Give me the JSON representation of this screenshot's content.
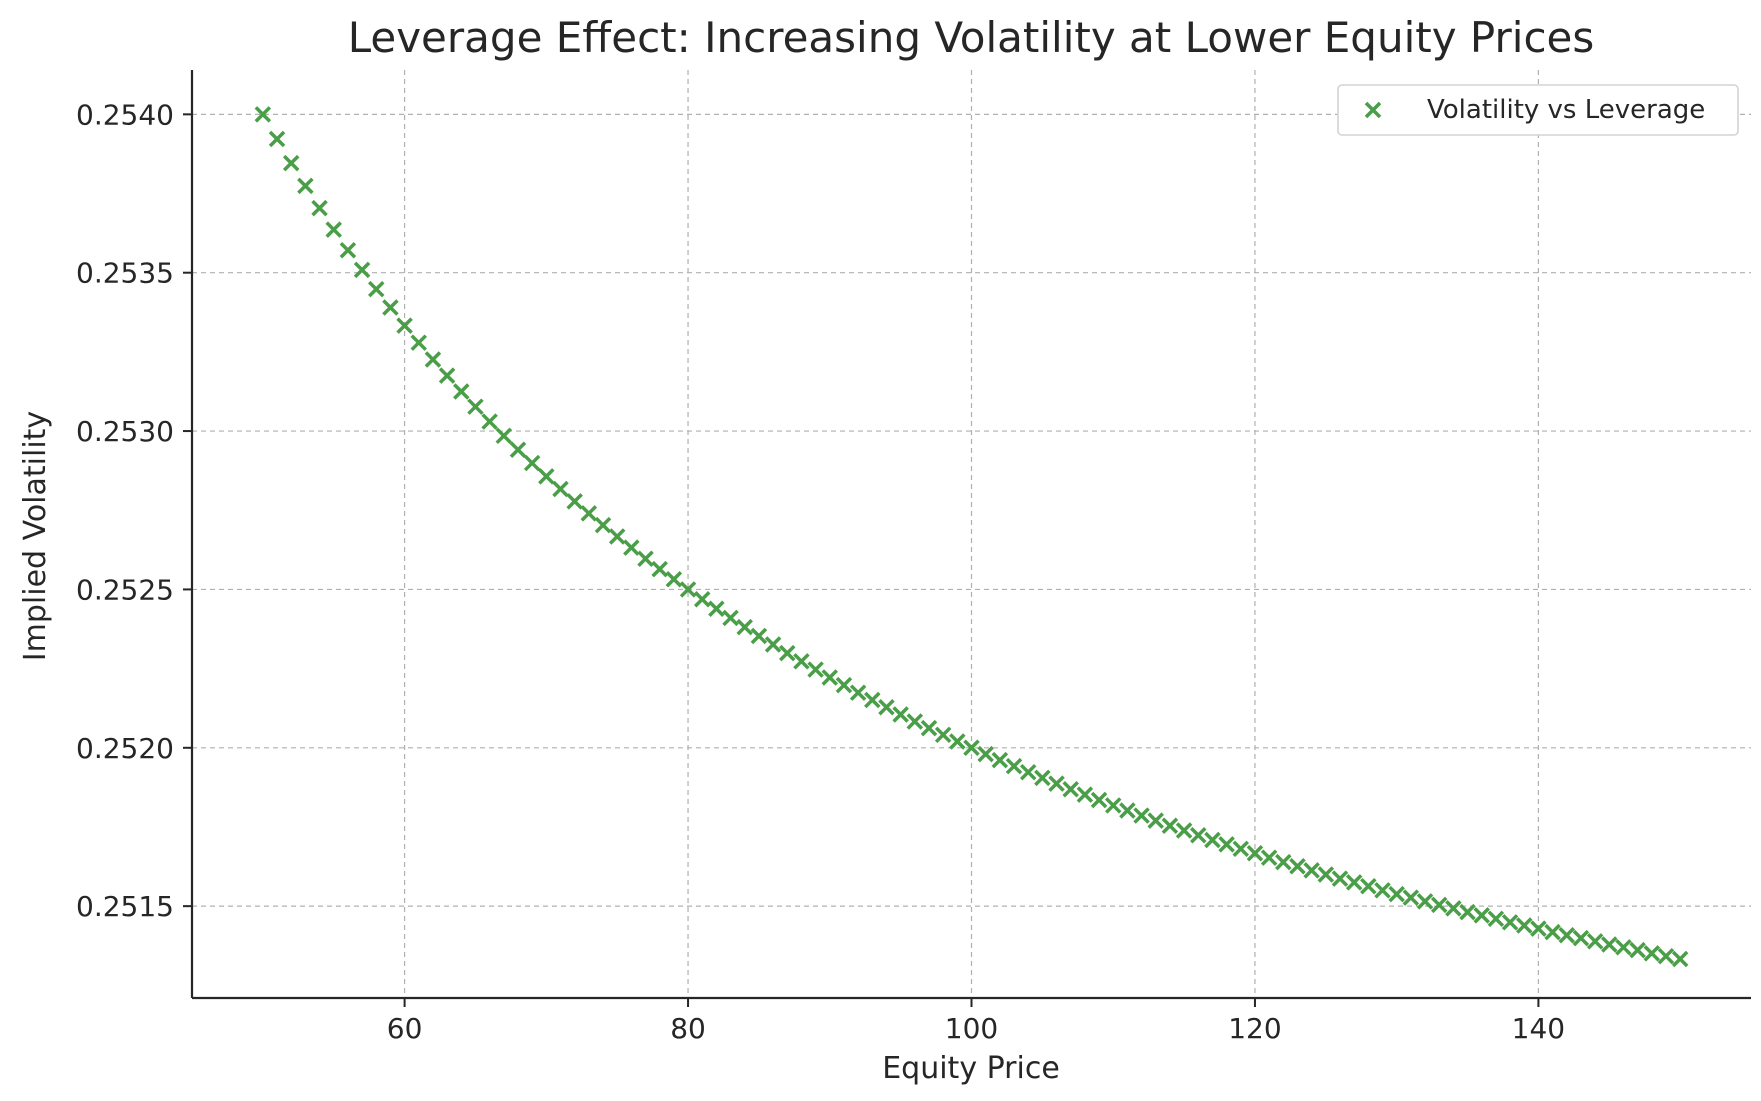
{
  "chart_data": {
    "type": "scatter",
    "title": "Leverage Effect: Increasing Volatility at Lower Equity Prices",
    "xlabel": "Equity Price",
    "ylabel": "Implied Volatility",
    "xlim": [
      45,
      155
    ],
    "ylim": [
      0.25121,
      0.25414
    ],
    "xticks": [
      60,
      80,
      100,
      120,
      140
    ],
    "yticks": [
      0.2515,
      0.252,
      0.2525,
      0.253,
      0.2535,
      0.254
    ],
    "xtick_labels": [
      "60",
      "80",
      "100",
      "120",
      "140"
    ],
    "ytick_labels": [
      "0.2515",
      "0.2520",
      "0.2525",
      "0.2530",
      "0.2535",
      "0.2540"
    ],
    "grid": true,
    "legend_position": "top-right",
    "marker": "x",
    "color": "#4a9e48",
    "series": [
      {
        "name": "Volatility vs Leverage",
        "x_start": 50,
        "x_end": 150,
        "x_step": 1,
        "y_formula_description": "0.25 + 0.2 / x",
        "x": [
          50,
          51,
          52,
          53,
          54,
          55,
          56,
          57,
          58,
          59,
          60,
          61,
          62,
          63,
          64,
          65,
          66,
          67,
          68,
          69,
          70,
          71,
          72,
          73,
          74,
          75,
          76,
          77,
          78,
          79,
          80,
          81,
          82,
          83,
          84,
          85,
          86,
          87,
          88,
          89,
          90,
          91,
          92,
          93,
          94,
          95,
          96,
          97,
          98,
          99,
          100,
          101,
          102,
          103,
          104,
          105,
          106,
          107,
          108,
          109,
          110,
          111,
          112,
          113,
          114,
          115,
          116,
          117,
          118,
          119,
          120,
          121,
          122,
          123,
          124,
          125,
          126,
          127,
          128,
          129,
          130,
          131,
          132,
          133,
          134,
          135,
          136,
          137,
          138,
          139,
          140,
          141,
          142,
          143,
          144,
          145,
          146,
          147,
          148,
          149,
          150
        ],
        "y": [
          0.254,
          0.253922,
          0.253846,
          0.253774,
          0.253704,
          0.253636,
          0.253571,
          0.253509,
          0.253448,
          0.25339,
          0.253333,
          0.253279,
          0.253226,
          0.253175,
          0.253125,
          0.253077,
          0.25303,
          0.252985,
          0.252941,
          0.252899,
          0.252857,
          0.252817,
          0.252778,
          0.25274,
          0.252703,
          0.252667,
          0.252632,
          0.252597,
          0.252564,
          0.252532,
          0.2525,
          0.252469,
          0.252439,
          0.25241,
          0.252381,
          0.252353,
          0.252326,
          0.252299,
          0.252273,
          0.252247,
          0.252222,
          0.252198,
          0.252174,
          0.252151,
          0.252128,
          0.252105,
          0.252083,
          0.252062,
          0.252041,
          0.25202,
          0.252,
          0.25198,
          0.251961,
          0.251942,
          0.251923,
          0.251905,
          0.251887,
          0.251869,
          0.251852,
          0.251835,
          0.251818,
          0.251802,
          0.251786,
          0.25177,
          0.251754,
          0.251739,
          0.251724,
          0.251709,
          0.251695,
          0.251681,
          0.251667,
          0.251653,
          0.251639,
          0.251626,
          0.251613,
          0.2516,
          0.251587,
          0.251575,
          0.251563,
          0.25155,
          0.251538,
          0.251527,
          0.251515,
          0.251504,
          0.251493,
          0.251481,
          0.251471,
          0.25146,
          0.251449,
          0.251439,
          0.251429,
          0.251418,
          0.251408,
          0.251399,
          0.251389,
          0.251379,
          0.25137,
          0.251361,
          0.251351,
          0.251342,
          0.251333
        ]
      }
    ]
  }
}
